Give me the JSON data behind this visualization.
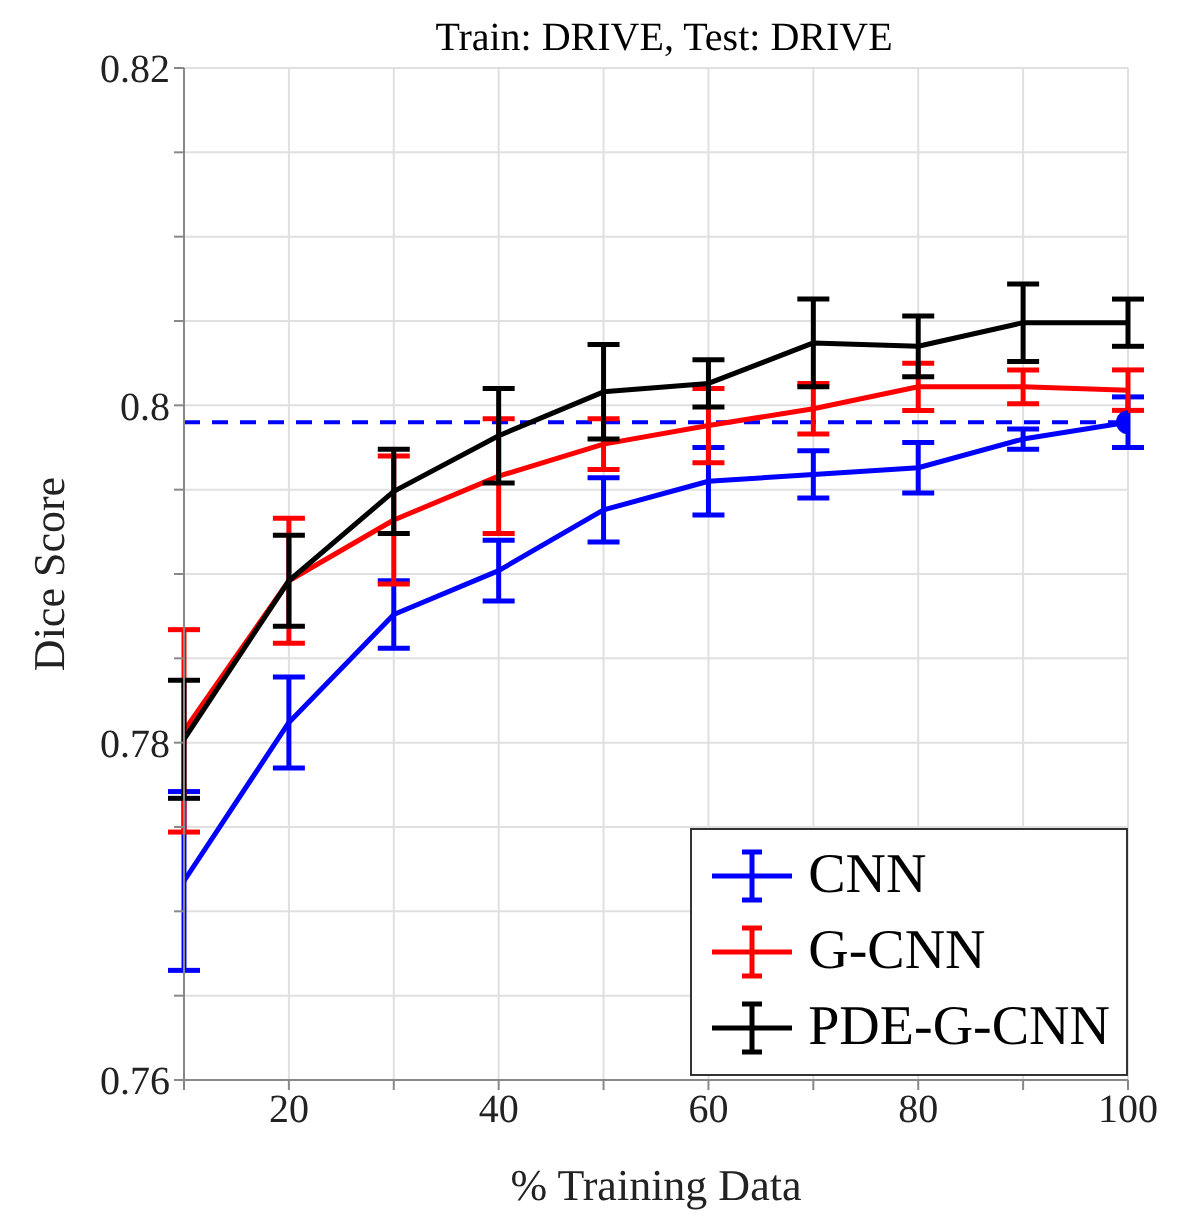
{
  "chart_data": {
    "type": "line",
    "title": "Train: DRIVE, Test: DRIVE",
    "xlabel": "% Training Data",
    "ylabel": "Dice Score",
    "x": [
      10,
      20,
      30,
      40,
      50,
      60,
      70,
      80,
      90,
      100
    ],
    "series": [
      {
        "name": "CNN",
        "color": "#0000ff",
        "values": [
          0.7718,
          0.7812,
          0.7876,
          0.7902,
          0.7938,
          0.7955,
          0.7959,
          0.7963,
          0.798,
          0.799
        ],
        "errors": [
          0.0053,
          0.0027,
          0.002,
          0.0018,
          0.0019,
          0.002,
          0.0014,
          0.0015,
          0.0006,
          0.0015
        ]
      },
      {
        "name": "G-CNN",
        "color": "#ff0000",
        "values": [
          0.7807,
          0.7896,
          0.7932,
          0.7958,
          0.7977,
          0.7988,
          0.7998,
          0.8011,
          0.8011,
          0.8009
        ],
        "errors": [
          0.006,
          0.0037,
          0.0038,
          0.0034,
          0.0015,
          0.0022,
          0.0015,
          0.0014,
          0.001,
          0.0012
        ]
      },
      {
        "name": "PDE-G-CNN",
        "color": "#000000",
        "values": [
          0.7802,
          0.7896,
          0.7949,
          0.7982,
          0.8008,
          0.8013,
          0.8037,
          0.8035,
          0.8049,
          0.8049
        ],
        "errors": [
          0.0035,
          0.0027,
          0.0025,
          0.0028,
          0.0028,
          0.0014,
          0.0026,
          0.0018,
          0.0023,
          0.0014
        ]
      },
      {
        "type": "scatter",
        "color": "#0000ff",
        "x": [
          100
        ],
        "values": [
          0.799
        ],
        "marker": "circle"
      }
    ],
    "xlim": [
      10,
      100
    ],
    "xticks": [
      {
        "value": 10,
        "label": null
      },
      20,
      {
        "value": 30,
        "label": null
      },
      40,
      {
        "value": 50,
        "label": null
      },
      60,
      {
        "value": 70,
        "label": null
      },
      80,
      {
        "value": 90,
        "label": null
      },
      100
    ],
    "ylim": [
      0.76,
      0.82
    ],
    "yticks": [
      0.76,
      {
        "value": 0.765,
        "label": null
      },
      {
        "value": 0.77,
        "label": null
      },
      {
        "value": 0.775,
        "label": null
      },
      0.78,
      {
        "value": 0.785,
        "label": null
      },
      {
        "value": 0.79,
        "label": null
      },
      {
        "value": 0.795,
        "label": null
      },
      0.8,
      {
        "value": 0.805,
        "label": null
      },
      {
        "value": 0.81,
        "label": null
      },
      {
        "value": 0.815,
        "label": null
      },
      0.82
    ],
    "ref_lines": [
      {
        "axis": "y",
        "value": 0.799,
        "color": "#0000ff",
        "line_style": "dashed"
      }
    ],
    "grid": true,
    "legend": "bottom right",
    "marker": "none",
    "line_style": "solid"
  }
}
